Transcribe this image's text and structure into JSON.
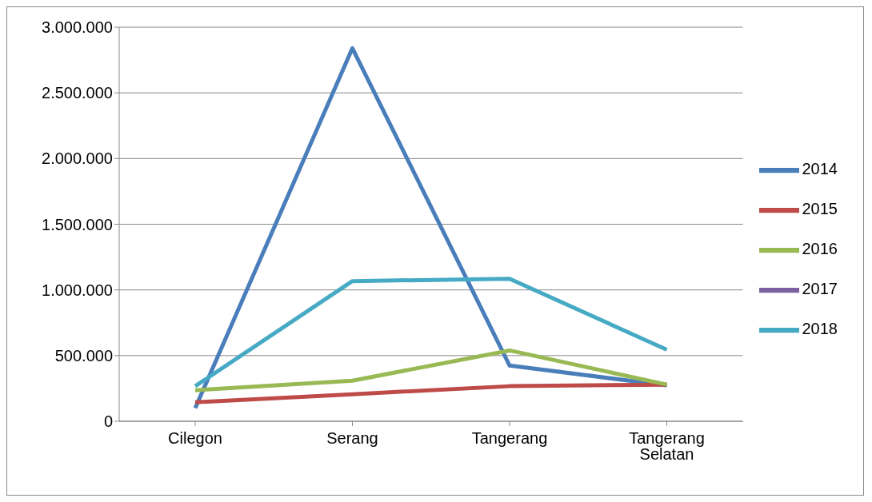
{
  "chart_data": {
    "type": "line",
    "categories": [
      "Cilegon",
      "Serang",
      "Tangerang",
      "Tangerang Selatan"
    ],
    "series": [
      {
        "name": "2014",
        "color": "#4a7ebb",
        "values": [
          100000,
          2840000,
          424000,
          273000
        ]
      },
      {
        "name": "2015",
        "color": "#be4b48",
        "values": [
          145000,
          206000,
          267000,
          279000
        ]
      },
      {
        "name": "2016",
        "color": "#98b954",
        "values": [
          236000,
          309000,
          539000,
          279000
        ]
      },
      {
        "name": "2017",
        "color": "#7d60a0",
        "values": [
          null,
          null,
          null,
          null
        ]
      },
      {
        "name": "2018",
        "color": "#46aac5",
        "values": [
          267000,
          1067000,
          1085000,
          545000
        ]
      }
    ],
    "ylim": [
      0,
      3000000
    ],
    "yticks": [
      {
        "value": 0,
        "label": "0"
      },
      {
        "value": 500000,
        "label": "500.000"
      },
      {
        "value": 1000000,
        "label": "1.000.000"
      },
      {
        "value": 1500000,
        "label": "1.500.000"
      },
      {
        "value": 2000000,
        "label": "2.000.000"
      },
      {
        "value": 2500000,
        "label": "2.500.000"
      },
      {
        "value": 3000000,
        "label": "3.000.000"
      }
    ],
    "grid": "y",
    "legend": "right",
    "marker": "none",
    "line_style": "solid"
  }
}
